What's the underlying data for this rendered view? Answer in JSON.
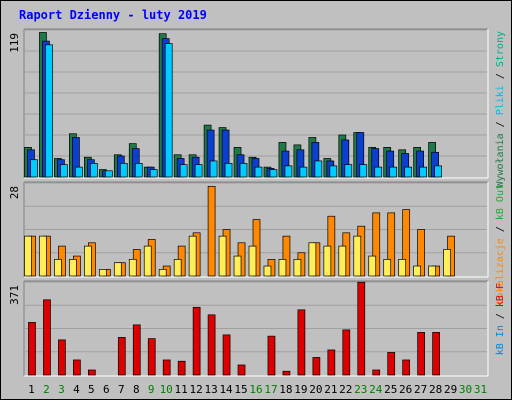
{
  "title": "Raport Dzienny -  luty 2019",
  "colors": {
    "background": "#c0c0c0",
    "panel": "#c0c0c0",
    "title": "#0000ff",
    "gridline": "#a0a0a0",
    "wizyty": "#1f7a4a",
    "strony": "#0c3fd0",
    "pliki": "#00ccff",
    "lokalizacje": "#ff8800",
    "kb_out": "#ffee55",
    "kb_in": "#22bb33",
    "kb_f": "#dd0000",
    "weekend_day": "#008000",
    "weekday": "#000000"
  },
  "legend": {
    "top": [
      {
        "text": "Wywołania",
        "color": "#1f7a4a"
      },
      {
        "text": " / ",
        "color": "#000000"
      },
      {
        "text": "Pliki",
        "color": "#00bbee"
      },
      {
        "text": " / ",
        "color": "#000000"
      },
      {
        "text": "Strony",
        "color": "#00aa88"
      }
    ],
    "middle": [
      {
        "text": "Lokalizacje",
        "color": "#ff8800"
      },
      {
        "text": " / ",
        "color": "#000000"
      },
      {
        "text": "kB Out",
        "color": "#22aa33"
      }
    ],
    "bottom": [
      {
        "text": "kB In",
        "color": "#0088dd"
      },
      {
        "text": " / ",
        "color": "#000000"
      },
      {
        "text": "kB F",
        "color": "#dd0000"
      }
    ]
  },
  "chart_data": [
    {
      "type": "bar",
      "name": "top-panel",
      "ymax_label": "119",
      "ylim": [
        0,
        119
      ],
      "categories": [
        "1",
        "2",
        "3",
        "4",
        "5",
        "6",
        "7",
        "8",
        "9",
        "10",
        "11",
        "12",
        "13",
        "14",
        "15",
        "16",
        "17",
        "18",
        "19",
        "20",
        "21",
        "22",
        "23",
        "24",
        "25",
        "26",
        "27",
        "28",
        "29",
        "30",
        "31"
      ],
      "series": [
        {
          "key": "wizyty",
          "values": [
            24,
            117,
            15,
            35,
            16,
            6,
            18,
            27,
            8,
            116,
            18,
            18,
            42,
            40,
            24,
            16,
            8,
            28,
            26,
            32,
            15,
            34,
            36,
            24,
            24,
            22,
            24,
            28,
            0,
            0,
            0
          ]
        },
        {
          "key": "strony",
          "values": [
            22,
            110,
            14,
            32,
            14,
            5,
            17,
            23,
            8,
            112,
            15,
            16,
            38,
            38,
            18,
            15,
            7,
            21,
            22,
            28,
            13,
            30,
            36,
            23,
            21,
            19,
            21,
            20,
            0,
            0,
            0
          ]
        },
        {
          "key": "pliki",
          "values": [
            14,
            107,
            10,
            8,
            11,
            5,
            11,
            11,
            6,
            108,
            10,
            10,
            13,
            11,
            11,
            8,
            6,
            9,
            8,
            13,
            9,
            10,
            10,
            8,
            8,
            8,
            8,
            9,
            0,
            0,
            0
          ]
        }
      ]
    },
    {
      "type": "bar",
      "name": "middle-panel",
      "ymax_label": "28",
      "ylim": [
        0,
        28
      ],
      "categories": [
        "1",
        "2",
        "3",
        "4",
        "5",
        "6",
        "7",
        "8",
        "9",
        "10",
        "11",
        "12",
        "13",
        "14",
        "15",
        "16",
        "17",
        "18",
        "19",
        "20",
        "21",
        "22",
        "23",
        "24",
        "25",
        "26",
        "27",
        "28",
        "29",
        "30",
        "31"
      ],
      "series": [
        {
          "key": "lokalizacje",
          "values": [
            12,
            12,
            9,
            6,
            10,
            2,
            4,
            8,
            11,
            3,
            9,
            13,
            27,
            14,
            10,
            17,
            5,
            12,
            7,
            10,
            18,
            13,
            15,
            19,
            19,
            20,
            14,
            3,
            12,
            0,
            0
          ]
        },
        {
          "key": "kb_out",
          "values": [
            12,
            12,
            5,
            5,
            9,
            2,
            4,
            5,
            9,
            2,
            5,
            12,
            0,
            12,
            6,
            9,
            3,
            5,
            5,
            10,
            9,
            9,
            12,
            6,
            5,
            5,
            3,
            3,
            8,
            0,
            0
          ]
        }
      ]
    },
    {
      "type": "bar",
      "name": "bottom-panel",
      "ymax_label": "371",
      "ylim": [
        0,
        371
      ],
      "categories": [
        "1",
        "2",
        "3",
        "4",
        "5",
        "6",
        "7",
        "8",
        "9",
        "10",
        "11",
        "12",
        "13",
        "14",
        "15",
        "16",
        "17",
        "18",
        "19",
        "20",
        "21",
        "22",
        "23",
        "24",
        "25",
        "26",
        "27",
        "28",
        "29",
        "30",
        "31"
      ],
      "series": [
        {
          "key": "kb_in",
          "values": [
            0,
            0,
            0,
            0,
            0,
            0,
            0,
            0,
            0,
            0,
            0,
            0,
            0,
            0,
            0,
            0,
            0,
            0,
            0,
            0,
            0,
            0,
            0,
            0,
            0,
            0,
            0,
            0,
            0,
            0,
            0
          ]
        },
        {
          "key": "kb_f",
          "values": [
            210,
            300,
            140,
            60,
            20,
            0,
            150,
            200,
            145,
            60,
            55,
            270,
            240,
            160,
            40,
            0,
            155,
            15,
            260,
            70,
            100,
            180,
            370,
            20,
            90,
            60,
            170,
            170,
            0,
            0,
            0
          ]
        }
      ]
    }
  ],
  "days": [
    {
      "label": "1",
      "weekend": false
    },
    {
      "label": "2",
      "weekend": true
    },
    {
      "label": "3",
      "weekend": true
    },
    {
      "label": "4",
      "weekend": false
    },
    {
      "label": "5",
      "weekend": false
    },
    {
      "label": "6",
      "weekend": false
    },
    {
      "label": "7",
      "weekend": false
    },
    {
      "label": "8",
      "weekend": false
    },
    {
      "label": "9",
      "weekend": true
    },
    {
      "label": "10",
      "weekend": true
    },
    {
      "label": "11",
      "weekend": false
    },
    {
      "label": "12",
      "weekend": false
    },
    {
      "label": "13",
      "weekend": false
    },
    {
      "label": "14",
      "weekend": false
    },
    {
      "label": "15",
      "weekend": false
    },
    {
      "label": "16",
      "weekend": true
    },
    {
      "label": "17",
      "weekend": true
    },
    {
      "label": "18",
      "weekend": false
    },
    {
      "label": "19",
      "weekend": false
    },
    {
      "label": "20",
      "weekend": false
    },
    {
      "label": "21",
      "weekend": false
    },
    {
      "label": "22",
      "weekend": false
    },
    {
      "label": "23",
      "weekend": true
    },
    {
      "label": "24",
      "weekend": true
    },
    {
      "label": "25",
      "weekend": false
    },
    {
      "label": "26",
      "weekend": false
    },
    {
      "label": "27",
      "weekend": false
    },
    {
      "label": "28",
      "weekend": false
    },
    {
      "label": "29",
      "weekend": false
    },
    {
      "label": "30",
      "weekend": true
    },
    {
      "label": "31",
      "weekend": true
    }
  ]
}
